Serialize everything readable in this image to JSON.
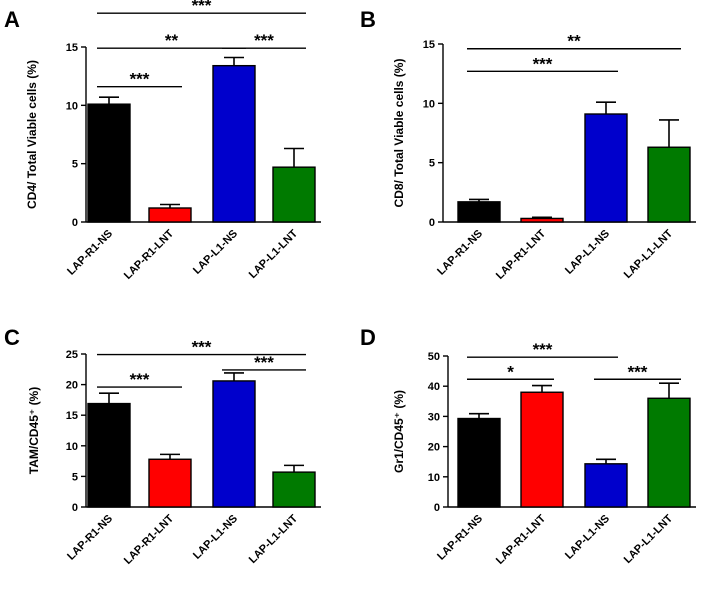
{
  "chart_data": [
    {
      "type": "bar",
      "panel_letter": "A",
      "ylabel": "CD4/ Total Viable cells (%)",
      "xlabel": "",
      "ylim": [
        0,
        15
      ],
      "yticks": [
        0,
        5,
        10,
        15
      ],
      "categories": [
        "LAP-R1-NS",
        "LAP-R1-LNT",
        "LAP-L1-NS",
        "LAP-L1-LNT"
      ],
      "values": [
        10.1,
        1.2,
        13.4,
        4.7
      ],
      "errors": [
        0.6,
        0.3,
        0.7,
        1.6
      ],
      "colors": [
        "#000000",
        "#ff0000",
        "#0000cc",
        "#007a00"
      ],
      "significance": [
        {
          "from": 0,
          "to": 1,
          "label": "***",
          "y": 11.6
        },
        {
          "from": 0,
          "to": 2,
          "label": "**",
          "y": 14.9
        },
        {
          "from": 2,
          "to": 3,
          "label": "***",
          "y": 14.9
        },
        {
          "from": 0,
          "to": 3,
          "label": "***",
          "y": 17.9
        }
      ]
    },
    {
      "type": "bar",
      "panel_letter": "B",
      "ylabel": "CD8/ Total Viable cells (%)",
      "xlabel": "",
      "ylim": [
        0,
        15
      ],
      "yticks": [
        0,
        5,
        10,
        15
      ],
      "categories": [
        "LAP-R1-NS",
        "LAP-R1-LNT",
        "LAP-L1-NS",
        "LAP-L1-LNT"
      ],
      "values": [
        1.7,
        0.3,
        9.1,
        6.3
      ],
      "errors": [
        0.2,
        0.1,
        1.0,
        2.3
      ],
      "colors": [
        "#000000",
        "#ff0000",
        "#0000cc",
        "#007a00"
      ],
      "significance": [
        {
          "from": 0,
          "to": 2,
          "label": "***",
          "y": 12.7
        },
        {
          "from": 0,
          "to": 3,
          "label": "**",
          "y": 14.6
        }
      ]
    },
    {
      "type": "bar",
      "panel_letter": "C",
      "ylabel": "TAM/CD45⁺ (%)",
      "xlabel": "",
      "ylim": [
        0,
        25
      ],
      "yticks": [
        0,
        5,
        10,
        15,
        20,
        25
      ],
      "categories": [
        "LAP-R1-NS",
        "LAP-R1-LNT",
        "LAP-L1-NS",
        "LAP-L1-LNT"
      ],
      "values": [
        16.9,
        7.8,
        20.6,
        5.7
      ],
      "errors": [
        1.7,
        0.8,
        1.3,
        1.1
      ],
      "colors": [
        "#000000",
        "#ff0000",
        "#0000cc",
        "#007a00"
      ],
      "significance": [
        {
          "from": 0,
          "to": 1,
          "label": "***",
          "y": 19.6
        },
        {
          "from": 2,
          "to": 3,
          "label": "***",
          "y": 22.4
        },
        {
          "from": 0,
          "to": 3,
          "label": "***",
          "y": 24.9
        }
      ]
    },
    {
      "type": "bar",
      "panel_letter": "D",
      "ylabel": "Gr1/CD45⁺ (%)",
      "xlabel": "",
      "ylim": [
        0,
        50
      ],
      "yticks": [
        0,
        10,
        20,
        30,
        40,
        50
      ],
      "categories": [
        "LAP-R1-NS",
        "LAP-R1-LNT",
        "LAP-L1-NS",
        "LAP-L1-LNT"
      ],
      "values": [
        29.3,
        38.0,
        14.3,
        36.0
      ],
      "errors": [
        1.6,
        2.2,
        1.5,
        5.0
      ],
      "colors": [
        "#000000",
        "#ff0000",
        "#0000cc",
        "#007a00"
      ],
      "significance": [
        {
          "from": 0,
          "to": 1,
          "label": "*",
          "y": 42.3
        },
        {
          "from": 2,
          "to": 3,
          "label": "***",
          "y": 42.3
        },
        {
          "from": 0,
          "to": 2,
          "label": "***",
          "y": 49.6
        }
      ]
    }
  ]
}
